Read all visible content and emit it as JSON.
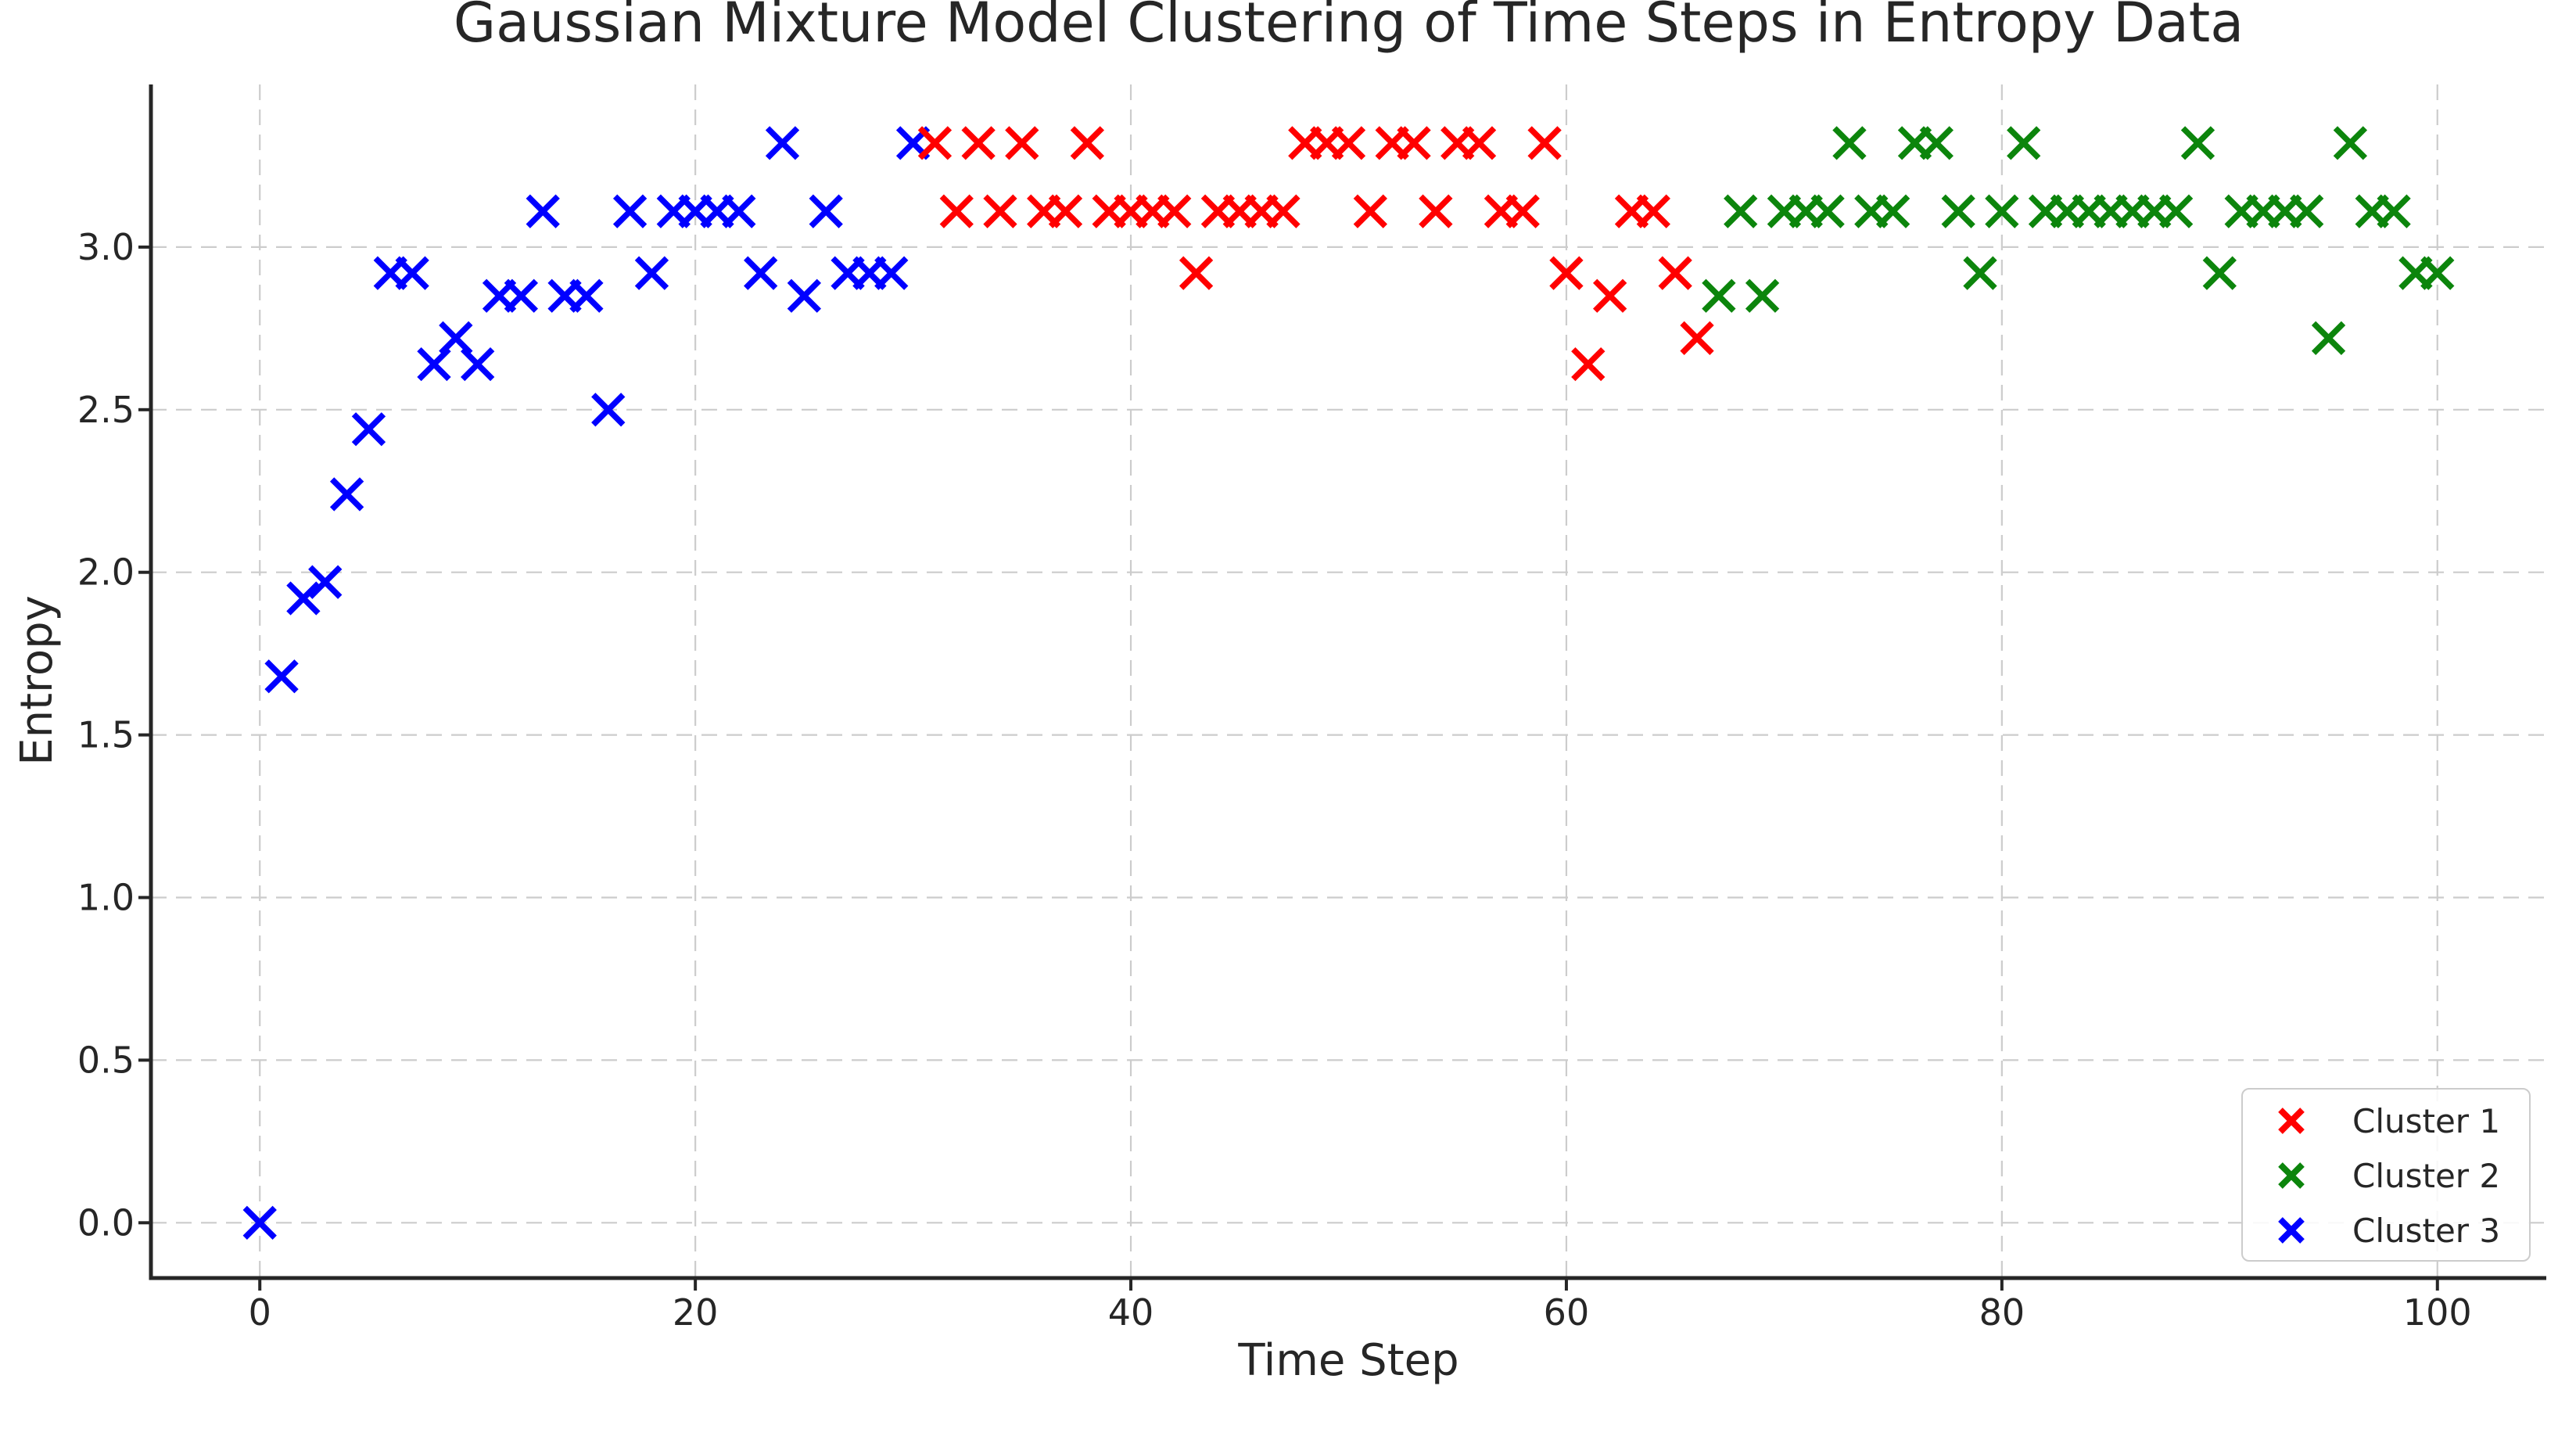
{
  "chart_data": {
    "type": "scatter",
    "title": "Gaussian Mixture Model Clustering of Time Steps in Entropy Data",
    "xlabel": "Time Step",
    "ylabel": "Entropy",
    "xlim": [
      -5,
      105
    ],
    "ylim": [
      -0.17,
      3.5
    ],
    "xticks": [
      0,
      20,
      40,
      60,
      80,
      100
    ],
    "yticks": [
      0.0,
      0.5,
      1.0,
      1.5,
      2.0,
      2.5,
      3.0
    ],
    "grid": true,
    "grid_style": "dashed",
    "marker": "x",
    "legend_position": "lower right",
    "series": [
      {
        "name": "Cluster 1",
        "color": "#ff0000",
        "points": [
          [
            31,
            3.32
          ],
          [
            32,
            3.11
          ],
          [
            33,
            3.32
          ],
          [
            34,
            3.11
          ],
          [
            35,
            3.32
          ],
          [
            36,
            3.11
          ],
          [
            37,
            3.11
          ],
          [
            38,
            3.32
          ],
          [
            39,
            3.11
          ],
          [
            40,
            3.11
          ],
          [
            41,
            3.11
          ],
          [
            42,
            3.11
          ],
          [
            43,
            2.92
          ],
          [
            44,
            3.11
          ],
          [
            45,
            3.11
          ],
          [
            46,
            3.11
          ],
          [
            47,
            3.11
          ],
          [
            48,
            3.32
          ],
          [
            49,
            3.32
          ],
          [
            50,
            3.32
          ],
          [
            51,
            3.11
          ],
          [
            52,
            3.32
          ],
          [
            53,
            3.32
          ],
          [
            54,
            3.11
          ],
          [
            55,
            3.32
          ],
          [
            56,
            3.32
          ],
          [
            57,
            3.11
          ],
          [
            58,
            3.11
          ],
          [
            59,
            3.32
          ],
          [
            60,
            2.92
          ],
          [
            61,
            2.64
          ],
          [
            62,
            2.85
          ],
          [
            63,
            3.11
          ],
          [
            64,
            3.11
          ],
          [
            65,
            2.92
          ],
          [
            66,
            2.72
          ]
        ]
      },
      {
        "name": "Cluster 2",
        "color": "#0c850c",
        "points": [
          [
            67,
            2.85
          ],
          [
            68,
            3.11
          ],
          [
            69,
            2.85
          ],
          [
            70,
            3.11
          ],
          [
            71,
            3.11
          ],
          [
            72,
            3.11
          ],
          [
            73,
            3.32
          ],
          [
            74,
            3.11
          ],
          [
            75,
            3.11
          ],
          [
            76,
            3.32
          ],
          [
            77,
            3.32
          ],
          [
            78,
            3.11
          ],
          [
            79,
            2.92
          ],
          [
            80,
            3.11
          ],
          [
            81,
            3.32
          ],
          [
            82,
            3.11
          ],
          [
            83,
            3.11
          ],
          [
            84,
            3.11
          ],
          [
            85,
            3.11
          ],
          [
            86,
            3.11
          ],
          [
            87,
            3.11
          ],
          [
            88,
            3.11
          ],
          [
            89,
            3.32
          ],
          [
            90,
            2.92
          ],
          [
            91,
            3.11
          ],
          [
            92,
            3.11
          ],
          [
            93,
            3.11
          ],
          [
            94,
            3.11
          ],
          [
            95,
            2.72
          ],
          [
            96,
            3.32
          ],
          [
            97,
            3.11
          ],
          [
            98,
            3.11
          ],
          [
            99,
            2.92
          ],
          [
            100,
            2.92
          ]
        ]
      },
      {
        "name": "Cluster 3",
        "color": "#0000ff",
        "points": [
          [
            0,
            0.0
          ],
          [
            1,
            1.68
          ],
          [
            2,
            1.92
          ],
          [
            3,
            1.97
          ],
          [
            4,
            2.24
          ],
          [
            5,
            2.44
          ],
          [
            6,
            2.92
          ],
          [
            7,
            2.92
          ],
          [
            8,
            2.64
          ],
          [
            9,
            2.72
          ],
          [
            10,
            2.64
          ],
          [
            11,
            2.85
          ],
          [
            12,
            2.85
          ],
          [
            13,
            3.11
          ],
          [
            14,
            2.85
          ],
          [
            15,
            2.85
          ],
          [
            16,
            2.5
          ],
          [
            17,
            3.11
          ],
          [
            18,
            2.92
          ],
          [
            19,
            3.11
          ],
          [
            20,
            3.11
          ],
          [
            21,
            3.11
          ],
          [
            22,
            3.11
          ],
          [
            23,
            2.92
          ],
          [
            24,
            3.32
          ],
          [
            25,
            2.85
          ],
          [
            26,
            3.11
          ],
          [
            27,
            2.92
          ],
          [
            28,
            2.92
          ],
          [
            29,
            2.92
          ],
          [
            30,
            3.32
          ]
        ]
      }
    ],
    "draw_order": [
      2,
      1,
      0
    ]
  },
  "colors": {
    "text": "#262626",
    "spine": "#262626",
    "grid": "#cccccc",
    "background": "#ffffff",
    "legend_border": "#cccccc"
  }
}
